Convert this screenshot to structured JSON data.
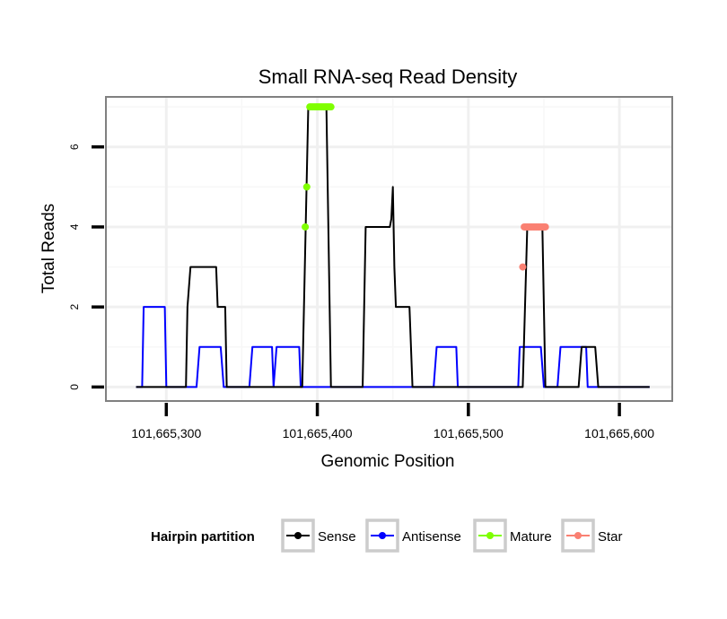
{
  "chart_data": {
    "type": "line",
    "title": "Small RNA-seq Read Density",
    "xlabel": "Genomic Position",
    "ylabel": "Total Reads",
    "xlim": [
      101665260,
      101665635
    ],
    "ylim": [
      -0.35,
      7.25
    ],
    "x_ticks": [
      101665300,
      101665400,
      101665500,
      101665600
    ],
    "x_tick_labels": [
      "101,665,300",
      "101,665,400",
      "101,665,500",
      "101,665,600"
    ],
    "y_ticks": [
      0,
      2,
      4,
      6
    ],
    "y_tick_labels": [
      "0",
      "2",
      "4",
      "6"
    ],
    "grid": true,
    "legend": {
      "title": "Hairpin partition",
      "position": "bottom",
      "entries": [
        "Sense",
        "Antisense",
        "Mature",
        "Star"
      ]
    },
    "colors": {
      "sense": "#000000",
      "antisense": "#0000ff",
      "mature": "#7fff00",
      "star": "#fa8072"
    },
    "series": [
      {
        "name": "Sense",
        "kind": "line",
        "color": "#000000",
        "x": [
          101665280,
          101665313,
          101665314,
          101665316,
          101665333,
          101665334,
          101665339,
          101665340,
          101665390,
          101665394,
          101665406,
          101665409,
          101665430,
          101665432,
          101665448,
          101665449,
          101665450,
          101665451,
          101665452,
          101665461,
          101665463,
          101665536,
          101665539,
          101665549,
          101665551,
          101665573,
          101665575,
          101665584,
          101665586,
          101665620
        ],
        "y": [
          0,
          0,
          2,
          3,
          3,
          2,
          2,
          0,
          0,
          7,
          7,
          0,
          0,
          4,
          4,
          4.2,
          5,
          3,
          2,
          2,
          0,
          0,
          4,
          4,
          0,
          0,
          1,
          1,
          0,
          0
        ]
      },
      {
        "name": "Antisense",
        "kind": "line",
        "color": "#0000ff",
        "x": [
          101665280,
          101665284,
          101665285,
          101665299,
          101665300,
          101665320,
          101665322,
          101665336,
          101665338,
          101665355,
          101665357,
          101665370,
          101665371,
          101665373,
          101665388,
          101665389,
          101665477,
          101665479,
          101665492,
          101665493,
          101665533,
          101665534,
          101665548,
          101665550,
          101665559,
          101665561,
          101665578,
          101665579,
          101665620
        ],
        "y": [
          0,
          0,
          2,
          2,
          0,
          0,
          1,
          1,
          0,
          0,
          1,
          1,
          0,
          1,
          1,
          0,
          0,
          1,
          1,
          0,
          0,
          1,
          1,
          0,
          0,
          1,
          1,
          0,
          0
        ]
      },
      {
        "name": "Mature",
        "kind": "points",
        "color": "#7fff00",
        "x": [
          101665392,
          101665393,
          101665395,
          101665396,
          101665397,
          101665398,
          101665399,
          101665400,
          101665401,
          101665402,
          101665403,
          101665404,
          101665405,
          101665406,
          101665407,
          101665408,
          101665409
        ],
        "y": [
          4,
          5,
          7,
          7,
          7,
          7,
          7,
          7,
          7,
          7,
          7,
          7,
          7,
          7,
          7,
          7,
          7
        ]
      },
      {
        "name": "Star",
        "kind": "points",
        "color": "#fa8072",
        "x": [
          101665536,
          101665537,
          101665538,
          101665539,
          101665540,
          101665541,
          101665542,
          101665543,
          101665544,
          101665545,
          101665546,
          101665547,
          101665548,
          101665549,
          101665550,
          101665551
        ],
        "y": [
          3,
          4,
          4,
          4,
          4,
          4,
          4,
          4,
          4,
          4,
          4,
          4,
          4,
          4,
          4,
          4
        ]
      }
    ]
  }
}
